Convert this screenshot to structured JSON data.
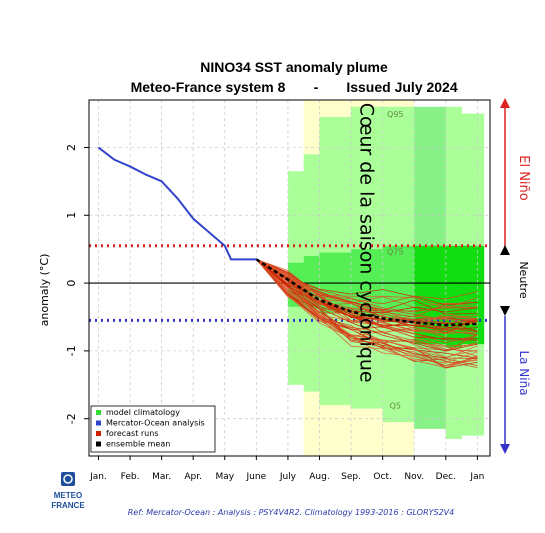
{
  "chart_data": {
    "type": "line",
    "title": "NINO34 SST anomaly plume",
    "subtitle_left": "Meteo-France system 8",
    "subtitle_sep": "-",
    "subtitle_right": "Issued July 2024",
    "ylabel": "anomaly (°C)",
    "ylim": [
      -2.55,
      2.7
    ],
    "yticks": [
      -2,
      -1,
      0,
      1,
      2
    ],
    "categories": [
      "Jan.",
      "Feb.",
      "Mar.",
      "Apr.",
      "May",
      "June",
      "July",
      "Aug.",
      "Sep.",
      "Oct.",
      "Nov.",
      "Dec.",
      "Jan"
    ],
    "thresholds": [
      {
        "value": 0.55,
        "color": "#dd2222"
      },
      {
        "value": -0.55,
        "color": "#3333cc"
      }
    ],
    "analysis": {
      "name": "Mercator-Ocean analysis",
      "color": "#3344cc",
      "x": [
        0,
        0.5,
        1,
        1.5,
        2,
        2.5,
        3,
        3.5,
        4,
        4.2,
        5
      ],
      "y": [
        2.0,
        1.82,
        1.72,
        1.6,
        1.5,
        1.25,
        0.95,
        0.75,
        0.55,
        0.35,
        0.35
      ]
    },
    "ensemble_mean": {
      "name": "ensemble mean",
      "color": "#000000",
      "x": [
        5,
        6,
        7,
        8,
        9,
        10,
        11,
        12
      ],
      "y": [
        0.35,
        0.05,
        -0.25,
        -0.42,
        -0.52,
        -0.58,
        -0.62,
        -0.6
      ]
    },
    "forecast_runs": {
      "name": "forecast runs",
      "color": "#cc2200",
      "count": 51,
      "start": [
        5,
        0.35
      ],
      "x": [
        6,
        7,
        8,
        9,
        10,
        11,
        12
      ],
      "mean": [
        0.05,
        -0.25,
        -0.42,
        -0.52,
        -0.58,
        -0.62,
        -0.6
      ],
      "spread": [
        0.18,
        0.3,
        0.42,
        0.5,
        0.55,
        0.6,
        0.6
      ]
    },
    "climatology": {
      "name": "model climatology",
      "columns": [
        {
          "x0": 6.0,
          "x1": 6.5,
          "outer": [
            -1.5,
            1.65
          ],
          "inner": [
            -0.35,
            0.3
          ]
        },
        {
          "x0": 6.5,
          "x1": 7.0,
          "outer": [
            -1.6,
            1.9
          ],
          "inner": [
            -0.38,
            0.4
          ]
        },
        {
          "x0": 7.0,
          "x1": 8.0,
          "outer": [
            -1.8,
            2.45
          ],
          "inner": [
            -0.45,
            0.45
          ]
        },
        {
          "x0": 8.0,
          "x1": 9.0,
          "outer": [
            -1.85,
            2.6
          ],
          "inner": [
            -0.5,
            0.5
          ]
        },
        {
          "x0": 9.0,
          "x1": 10.0,
          "outer": [
            -2.05,
            2.6
          ],
          "inner": [
            -0.58,
            0.55
          ]
        },
        {
          "x0": 10.0,
          "x1": 11.0,
          "outer": [
            -2.15,
            2.6
          ],
          "inner": [
            -0.9,
            0.55
          ]
        },
        {
          "x0": 11.0,
          "x1": 11.5,
          "outer": [
            -2.3,
            2.6
          ],
          "inner": [
            -0.95,
            0.55
          ]
        },
        {
          "x0": 11.5,
          "x1": 12.2,
          "outer": [
            -2.25,
            2.5
          ],
          "inner": [
            -0.9,
            0.55
          ]
        }
      ],
      "q95_label": "Q95",
      "q95_at": [
        9.4,
        2.45
      ],
      "q75_label": "Q75",
      "q75_at": [
        9.4,
        0.42
      ],
      "q5_label": "Q5",
      "q5_at": [
        9.4,
        -1.85
      ]
    },
    "season_band": {
      "x0": 6.5,
      "x1": 10.0,
      "color": "#ffffcc"
    },
    "annotation": "Cœur de la saison cyclonique",
    "legend": [
      {
        "label": "model climatology",
        "color": "#33dd33"
      },
      {
        "label": "Mercator-Ocean analysis",
        "color": "#3344cc"
      },
      {
        "label": "forecast runs",
        "color": "#cc2200"
      },
      {
        "label": "ensemble mean",
        "color": "#000000"
      }
    ],
    "legend_position": "bottom-left",
    "grid": true,
    "side_labels": {
      "el_nino": "El Niño",
      "neutre": "Neutre",
      "la_nina": "La Niña"
    },
    "side_colors": {
      "el_nino": "#dd2222",
      "neutre": "#000000",
      "la_nina": "#3333cc"
    }
  },
  "footer": "Ref: Mercator-Ocean : Analysis : PSY4V4R2. Climatology 1993-2016 : GLORYS2V4",
  "logo": {
    "line1": "METEO",
    "line2": "FRANCE"
  }
}
